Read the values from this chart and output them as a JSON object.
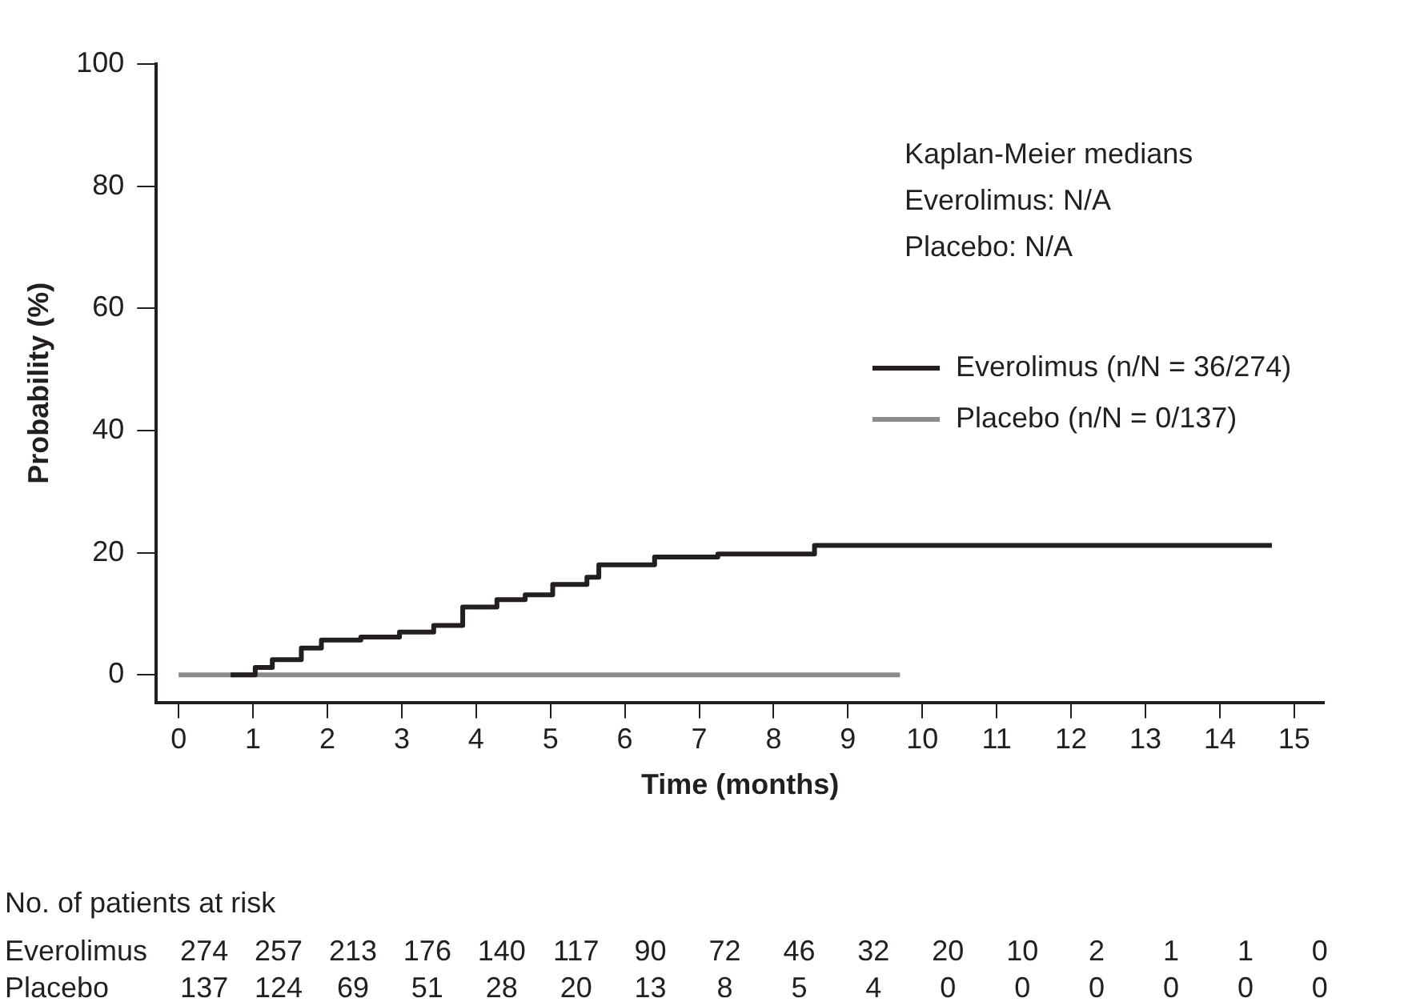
{
  "chart_data": {
    "type": "step",
    "xlabel": "Time (months)",
    "ylabel": "Probability (%)",
    "xlim": [
      -0.3,
      15.4
    ],
    "ylim": [
      -4.5,
      100
    ],
    "xticks": [
      0,
      1,
      2,
      3,
      4,
      5,
      6,
      7,
      8,
      9,
      10,
      11,
      12,
      13,
      14,
      15
    ],
    "yticks": [
      0,
      20,
      40,
      60,
      80,
      100
    ],
    "grid": false,
    "legend": "right",
    "line_style": "solid",
    "marker": "none",
    "series": [
      {
        "name": "Everolimus (n/N = 36/274)",
        "color": "#231f20",
        "x": [
          0.7,
          1.03,
          1.26,
          1.65,
          1.92,
          2.45,
          2.97,
          3.43,
          3.82,
          4.28,
          4.66,
          5.03,
          5.49,
          5.65,
          6.4,
          7.25,
          8.55,
          14.7
        ],
        "values": [
          0,
          1.2,
          2.5,
          4.4,
          5.7,
          6.2,
          7.0,
          8.1,
          11.1,
          12.3,
          13.1,
          14.8,
          16,
          18,
          19.3,
          19.8,
          21.2,
          21.2
        ]
      },
      {
        "name": "Placebo (n/N = 0/137)",
        "color": "#8c8c8c",
        "x": [
          0,
          9.7
        ],
        "values": [
          0,
          0
        ]
      }
    ],
    "annotations": [
      "Kaplan-Meier medians",
      "Everolimus: N/A",
      "Placebo: N/A",
      "No. of patients at risk",
      "Everolimus 274 257 213 176 140 117 90 72 46 32 20 10 2 1 1 0",
      "Placebo 137 124 69 51 28 20 13 8 5 4 0 0 0 0 0 0"
    ]
  }
}
